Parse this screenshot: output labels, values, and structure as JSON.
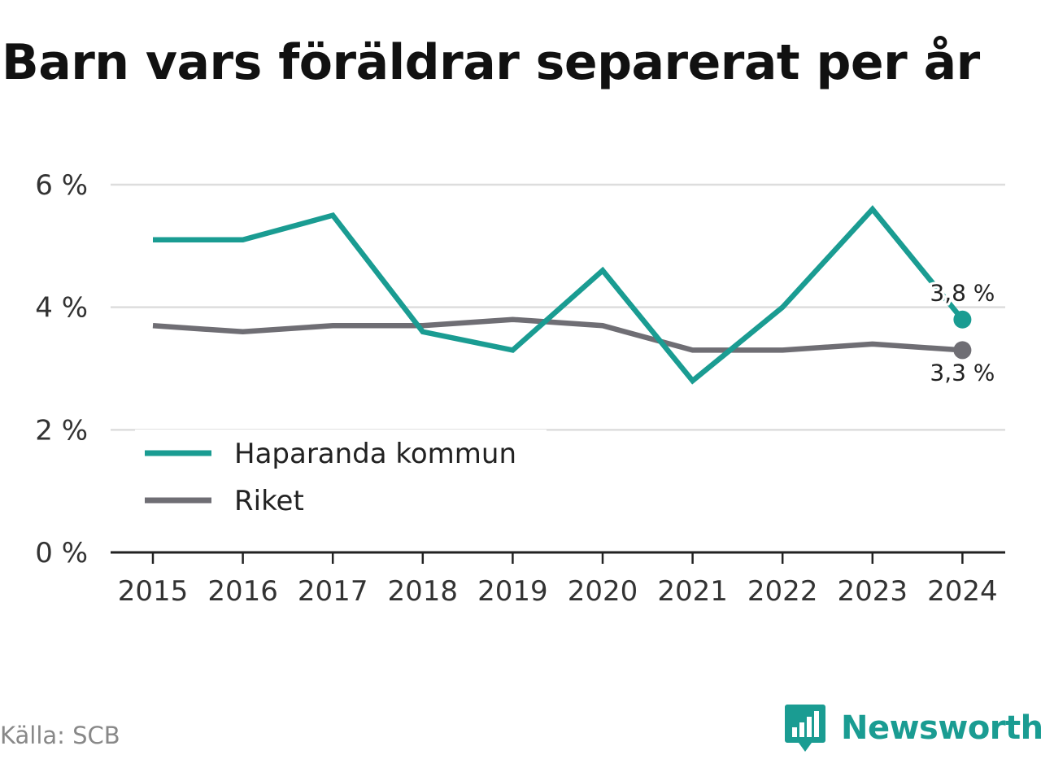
{
  "chart_data": {
    "type": "line",
    "title": "Barn vars föräldrar separerat per år",
    "xlabel": "",
    "ylabel": "",
    "x": [
      "2015",
      "2016",
      "2017",
      "2018",
      "2019",
      "2020",
      "2021",
      "2022",
      "2023",
      "2024"
    ],
    "y_ticks": [
      "0 %",
      "2 %",
      "4 %",
      "6 %"
    ],
    "ylim": [
      0,
      6
    ],
    "grid": true,
    "legend_position": "bottom-left",
    "series": [
      {
        "name": "Haparanda kommun",
        "color": "#1a9c92",
        "values": [
          5.1,
          5.1,
          5.5,
          3.6,
          3.3,
          4.6,
          2.8,
          4.0,
          5.6,
          3.8
        ],
        "end_label": "3,8 %"
      },
      {
        "name": "Riket",
        "color": "#6f6e74",
        "values": [
          3.7,
          3.6,
          3.7,
          3.7,
          3.8,
          3.7,
          3.3,
          3.3,
          3.4,
          3.3
        ],
        "end_label": "3,3 %"
      }
    ]
  },
  "footer": {
    "source": "Källa: SCB",
    "brand": "Newsworthy",
    "brand_icon": "bar-chart-speech-bubble-icon",
    "brand_color": "#1a9c92"
  }
}
